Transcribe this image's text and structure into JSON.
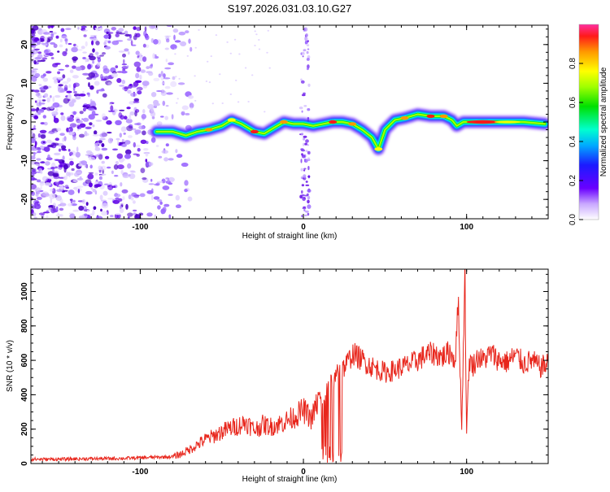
{
  "title": "S197.2026.031.03.10.G27",
  "chart_data": [
    {
      "type": "heatmap",
      "xlabel": "Height of straight line (km)",
      "ylabel": "Frequency (Hz)",
      "xlim": [
        -167,
        150
      ],
      "ylim": [
        -25,
        25
      ],
      "xticks": [
        "-100",
        "0",
        "100"
      ],
      "yticks": [
        "-20",
        "-10",
        "0",
        "10",
        "20"
      ],
      "ridge_x": [
        -90,
        -80,
        -72,
        -65,
        -58,
        -50,
        -44,
        -38,
        -30,
        -24,
        -18,
        -12,
        -6,
        0,
        6,
        12,
        18,
        24,
        30,
        36,
        42,
        46,
        50,
        56,
        62,
        70,
        78,
        86,
        91,
        94,
        98,
        105,
        115,
        125,
        135,
        148
      ],
      "ridge_y": [
        -2.5,
        -2.5,
        -3.5,
        -2.5,
        -2,
        -1,
        0.5,
        -0.5,
        -2.5,
        -3,
        -1.5,
        0,
        -0.5,
        -0.5,
        -1,
        -0.5,
        0,
        0,
        -0.5,
        -2,
        -4,
        -7,
        -2,
        0.5,
        1,
        2,
        1.5,
        1.5,
        0.5,
        -1,
        0,
        0,
        0,
        0,
        0,
        -0.5
      ],
      "colorbar": {
        "label": "Normalized spectral amplitude",
        "ticks": [
          "0.0",
          "0.2",
          "0.4",
          "0.6",
          "0.8"
        ],
        "range": [
          0,
          1
        ]
      }
    },
    {
      "type": "line",
      "xlabel": "Height of straight line (km)",
      "ylabel": "SNR (10 * v/v)",
      "xlim": [
        -167,
        150
      ],
      "ylim": [
        0,
        1130
      ],
      "xticks": [
        "-100",
        "0",
        "100"
      ],
      "yticks": [
        "0",
        "200",
        "400",
        "600",
        "800",
        "1000"
      ],
      "color": "#e8261c",
      "series": [
        {
          "name": "SNR",
          "x": [
            -167,
            -150,
            -130,
            -110,
            -95,
            -80,
            -75,
            -70,
            -65,
            -60,
            -55,
            -50,
            -45,
            -40,
            -35,
            -30,
            -25,
            -20,
            -15,
            -10,
            -5,
            0,
            5,
            10,
            12,
            15,
            18,
            22,
            25,
            28,
            30,
            35,
            40,
            45,
            50,
            55,
            60,
            65,
            70,
            75,
            80,
            85,
            90,
            93,
            95,
            97,
            99,
            100,
            101,
            102,
            104,
            107,
            110,
            115,
            120,
            125,
            130,
            135,
            140,
            145,
            150
          ],
          "y": [
            25,
            25,
            28,
            30,
            35,
            40,
            55,
            80,
            110,
            140,
            160,
            185,
            205,
            220,
            240,
            195,
            225,
            215,
            230,
            250,
            275,
            310,
            260,
            390,
            330,
            450,
            470,
            540,
            560,
            600,
            640,
            610,
            575,
            550,
            530,
            540,
            560,
            575,
            600,
            630,
            640,
            620,
            650,
            600,
            940,
            200,
            1130,
            150,
            500,
            600,
            570,
            620,
            600,
            640,
            600,
            590,
            630,
            580,
            600,
            560,
            580
          ]
        }
      ]
    }
  ]
}
